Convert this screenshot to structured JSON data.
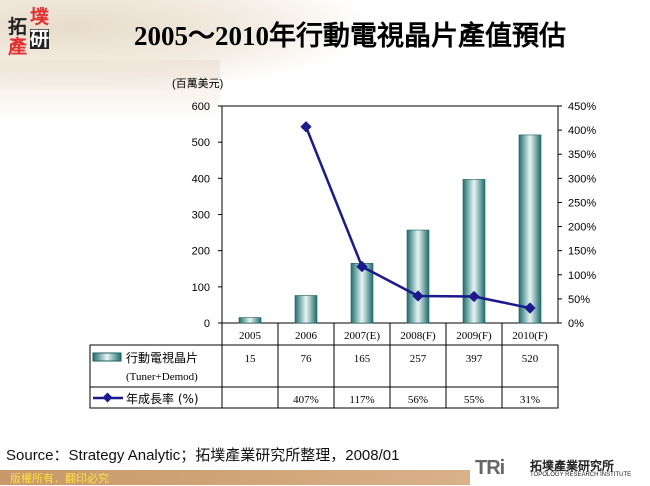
{
  "logo": {
    "chars": [
      "拓",
      "墣",
      "產",
      "研"
    ]
  },
  "title": "2005～2010年行動電視晶片產值預估",
  "unit": "(百萬美元)",
  "source": "Source：Strategy Analytic；拓墣產業研究所整理，2008/01",
  "footer": {
    "copyright": "版權所有．翻印必究",
    "brand_short": "TRi",
    "brand_cn": "拓墣產業研究所",
    "brand_en": "TOPOLOGY RESEARCH INSTITUTE"
  },
  "chart_data": {
    "type": "bar+line",
    "title": "2005～2010年行動電視晶片產值預估",
    "categories": [
      "2005",
      "2006",
      "2007(E)",
      "2008(F)",
      "2009(F)",
      "2010(F)"
    ],
    "y_left": {
      "label": "(百萬美元)",
      "range": [
        0,
        600
      ],
      "ticks": [
        "0",
        "100",
        "200",
        "300",
        "400",
        "500",
        "600"
      ]
    },
    "y_right": {
      "range": [
        0,
        450
      ],
      "ticks": [
        "0%",
        "50%",
        "100%",
        "150%",
        "200%",
        "250%",
        "300%",
        "350%",
        "400%",
        "450%"
      ]
    },
    "series": [
      {
        "name": "行動電視晶片",
        "name2": "(Tuner+Demod)",
        "type": "bar",
        "values": [
          15,
          76,
          165,
          257,
          397,
          520
        ],
        "labels": [
          "15",
          "76",
          "165",
          "257",
          "397",
          "520"
        ],
        "color": "#2e8b8b"
      },
      {
        "name": "年成長率 (%)",
        "type": "line",
        "axis": "right",
        "values": [
          null,
          407,
          117,
          56,
          55,
          31
        ],
        "labels": [
          "",
          "407%",
          "117%",
          "56%",
          "55%",
          "31%"
        ],
        "color": "#1a1a8c"
      }
    ],
    "data_table": true,
    "grid": false
  }
}
